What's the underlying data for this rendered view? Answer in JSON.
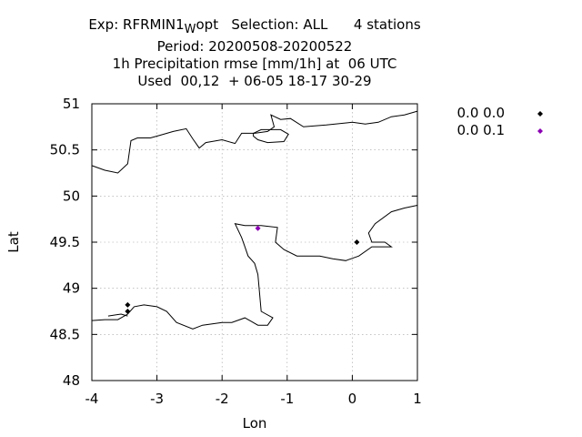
{
  "title": {
    "line1_a": "Exp: RFRMIN1",
    "line1_sub": "W",
    "line1_b": "opt   Selection: ALL      4 stations",
    "line2": "Period: 20200508-20200522",
    "line3": "1h Precipitation rmse [mm/1h] at  06 UTC",
    "line4": "Used  00,12  + 06-05 18-17 30-29"
  },
  "chart_data": {
    "type": "scatter",
    "xlabel": "Lon",
    "ylabel": "Lat",
    "xlim": [
      -4,
      1
    ],
    "ylim": [
      48,
      51
    ],
    "xticks": [
      -4,
      -3,
      -2,
      -1,
      0,
      1
    ],
    "yticks": [
      48,
      48.5,
      49,
      49.5,
      50,
      50.5,
      51
    ],
    "xtick_labels": [
      "-4",
      "-3",
      "-2",
      "-1",
      "0",
      "1"
    ],
    "ytick_labels": [
      "48",
      "48.5",
      "49",
      "49.5",
      "50",
      "50.5",
      "51"
    ],
    "grid": true,
    "legend_position": "outside-right-top",
    "series": [
      {
        "name": "0.0 0.0",
        "color": "#000000",
        "marker": "diamond",
        "points": [
          {
            "x": 0.07,
            "y": 49.5
          },
          {
            "x": -3.45,
            "y": 48.82
          },
          {
            "x": -3.45,
            "y": 48.75
          }
        ]
      },
      {
        "name": "0.0 0.1",
        "color": "#8b00b3",
        "marker": "diamond",
        "points": [
          {
            "x": -1.45,
            "y": 49.65
          }
        ]
      }
    ]
  },
  "coastlines": [
    [
      [
        -4,
        50.33
      ],
      [
        -3.8,
        50.28
      ],
      [
        -3.6,
        50.25
      ],
      [
        -3.45,
        50.35
      ],
      [
        -3.4,
        50.6
      ],
      [
        -3.3,
        50.63
      ],
      [
        -3.1,
        50.63
      ],
      [
        -2.95,
        50.66
      ],
      [
        -2.75,
        50.7
      ],
      [
        -2.55,
        50.73
      ],
      [
        -2.45,
        50.62
      ],
      [
        -2.35,
        50.52
      ],
      [
        -2.25,
        50.58
      ],
      [
        -2.0,
        50.61
      ],
      [
        -1.8,
        50.57
      ],
      [
        -1.7,
        50.68
      ],
      [
        -1.5,
        50.68
      ],
      [
        -1.3,
        50.7
      ],
      [
        -1.2,
        50.75
      ],
      [
        -1.25,
        50.88
      ],
      [
        -1.1,
        50.83
      ],
      [
        -0.95,
        50.84
      ],
      [
        -0.75,
        50.75
      ],
      [
        -0.4,
        50.77
      ],
      [
        0.0,
        50.8
      ],
      [
        0.2,
        50.78
      ],
      [
        0.4,
        50.8
      ],
      [
        0.6,
        50.86
      ],
      [
        0.8,
        50.88
      ],
      [
        1.0,
        50.92
      ]
    ],
    [
      [
        -1.52,
        50.68
      ],
      [
        -1.4,
        50.72
      ],
      [
        -1.1,
        50.72
      ],
      [
        -0.98,
        50.67
      ],
      [
        -1.05,
        50.59
      ],
      [
        -1.3,
        50.58
      ],
      [
        -1.45,
        50.61
      ],
      [
        -1.52,
        50.65
      ],
      [
        -1.52,
        50.68
      ]
    ],
    [
      [
        -4,
        48.65
      ],
      [
        -3.8,
        48.66
      ],
      [
        -3.6,
        48.66
      ],
      [
        -3.45,
        48.72
      ],
      [
        -3.35,
        48.8
      ],
      [
        -3.2,
        48.82
      ],
      [
        -3.0,
        48.8
      ],
      [
        -2.85,
        48.75
      ],
      [
        -2.7,
        48.63
      ],
      [
        -2.45,
        48.56
      ],
      [
        -2.3,
        48.6
      ],
      [
        -2.0,
        48.63
      ],
      [
        -1.85,
        48.63
      ],
      [
        -1.65,
        48.68
      ],
      [
        -1.55,
        48.64
      ],
      [
        -1.45,
        48.6
      ],
      [
        -1.3,
        48.6
      ],
      [
        -1.22,
        48.68
      ],
      [
        -1.4,
        48.75
      ],
      [
        -1.45,
        49.15
      ],
      [
        -1.5,
        49.27
      ],
      [
        -1.6,
        49.35
      ],
      [
        -1.65,
        49.45
      ],
      [
        -1.7,
        49.55
      ],
      [
        -1.8,
        49.7
      ],
      [
        -1.65,
        49.68
      ],
      [
        -1.4,
        49.68
      ],
      [
        -1.15,
        49.66
      ],
      [
        -1.18,
        49.5
      ],
      [
        -1.05,
        49.42
      ],
      [
        -0.85,
        49.35
      ],
      [
        -0.5,
        49.35
      ],
      [
        -0.3,
        49.32
      ],
      [
        -0.1,
        49.3
      ],
      [
        0.1,
        49.35
      ],
      [
        0.3,
        49.45
      ],
      [
        0.6,
        49.45
      ],
      [
        0.5,
        49.5
      ],
      [
        0.3,
        49.5
      ],
      [
        0.25,
        49.6
      ],
      [
        0.35,
        49.7
      ],
      [
        0.6,
        49.83
      ],
      [
        0.8,
        49.87
      ],
      [
        1.0,
        49.9
      ]
    ],
    [
      [
        -3.75,
        48.7
      ],
      [
        -3.55,
        48.72
      ],
      [
        -3.45,
        48.7
      ]
    ]
  ]
}
